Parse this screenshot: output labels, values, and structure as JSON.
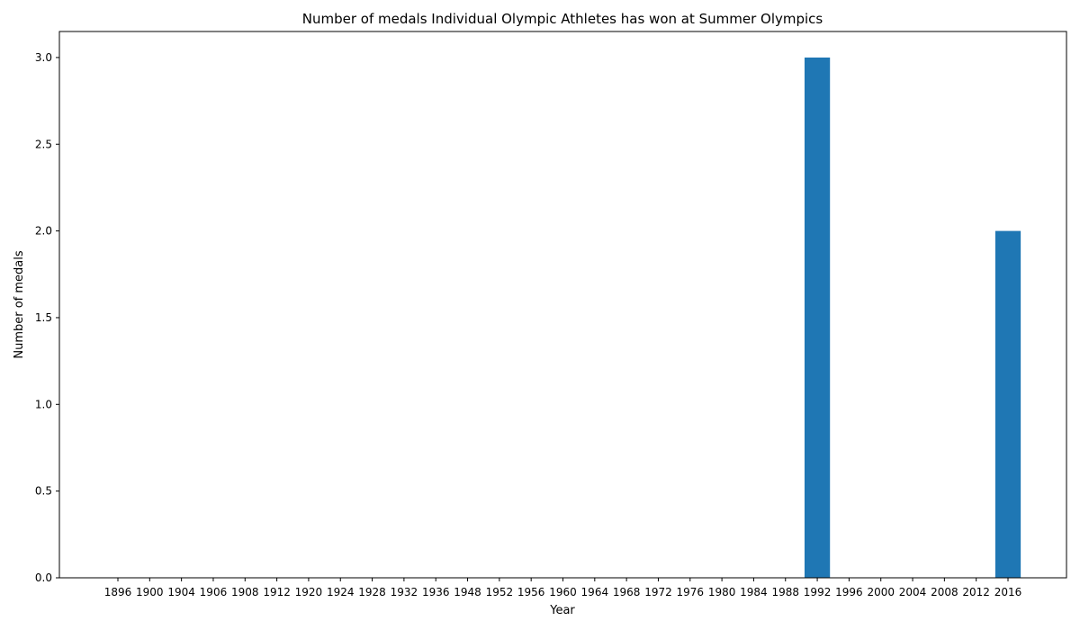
{
  "chart_data": {
    "type": "bar",
    "title": "Number of medals Individual Olympic Athletes has won at Summer Olympics",
    "xlabel": "Year",
    "ylabel": "Number of medals",
    "categories": [
      "1896",
      "1900",
      "1904",
      "1906",
      "1908",
      "1912",
      "1920",
      "1924",
      "1928",
      "1932",
      "1936",
      "1948",
      "1952",
      "1956",
      "1960",
      "1964",
      "1968",
      "1972",
      "1976",
      "1980",
      "1984",
      "1988",
      "1992",
      "1996",
      "2000",
      "2004",
      "2008",
      "2012",
      "2016"
    ],
    "values": [
      0,
      0,
      0,
      0,
      0,
      0,
      0,
      0,
      0,
      0,
      0,
      0,
      0,
      0,
      0,
      0,
      0,
      0,
      0,
      0,
      0,
      0,
      3,
      0,
      0,
      0,
      0,
      0,
      2
    ],
    "ylim": [
      0,
      3.15
    ],
    "yticks": [
      "0.0",
      "0.5",
      "1.0",
      "1.5",
      "2.0",
      "2.5",
      "3.0"
    ],
    "grid": false,
    "bar_color": "#1f77b4"
  }
}
